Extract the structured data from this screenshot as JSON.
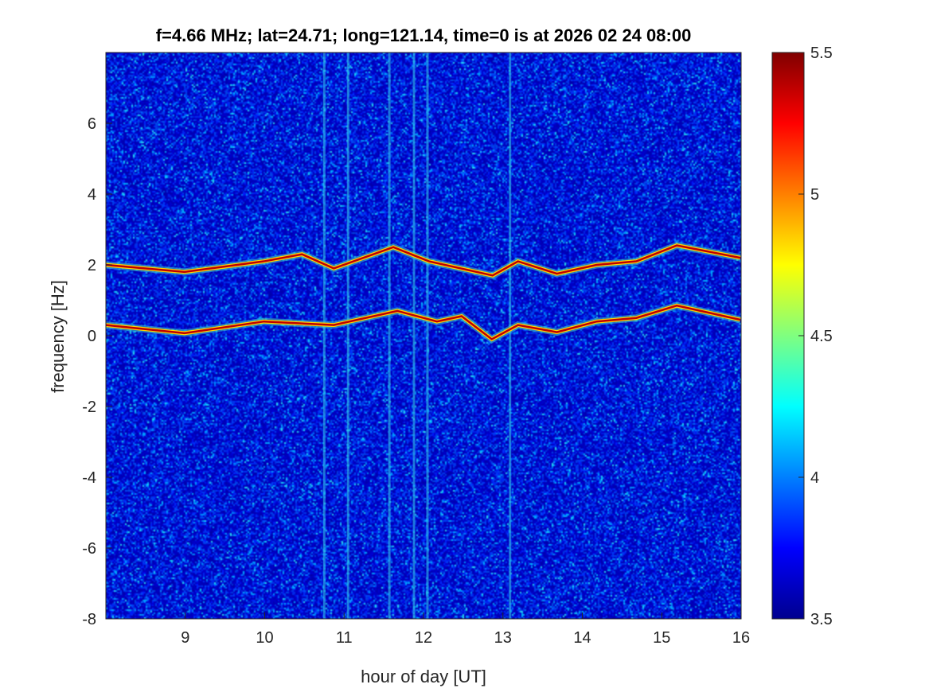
{
  "chart_data": {
    "type": "heatmap",
    "title": "f=4.66 MHz;  lat=24.71; long=121.14, time=0 is at 2026 02 24 08:00",
    "xlabel": "hour of day [UT]",
    "ylabel": "frequency [Hz]",
    "xlim": [
      8,
      16
    ],
    "ylim": [
      -8,
      8
    ],
    "xticks": [
      "9",
      "10",
      "11",
      "12",
      "13",
      "14",
      "15",
      "16"
    ],
    "yticks": [
      "6",
      "4",
      "2",
      "0",
      "-2",
      "-4",
      "-6",
      "-8"
    ],
    "colorbar": {
      "range": [
        3.5,
        5.5
      ],
      "ticks": [
        "5.5",
        "5",
        "4.5",
        "4",
        "3.5"
      ],
      "colormap": "jet"
    },
    "background_level": 3.75,
    "traces": [
      {
        "name": "upper-echo",
        "hours": [
          8.0,
          8.99,
          9.99,
          10.47,
          10.87,
          11.62,
          12.07,
          12.87,
          13.19,
          13.68,
          14.18,
          14.68,
          15.19,
          15.99
        ],
        "freq": [
          2.0,
          1.8,
          2.1,
          2.3,
          1.9,
          2.5,
          2.1,
          1.7,
          2.1,
          1.75,
          2.0,
          2.1,
          2.55,
          2.2
        ]
      },
      {
        "name": "lower-echo",
        "hours": [
          8.0,
          8.99,
          9.99,
          10.87,
          11.67,
          12.17,
          12.48,
          12.86,
          13.19,
          13.68,
          14.18,
          14.68,
          15.19,
          15.99
        ],
        "freq": [
          0.3,
          0.07,
          0.4,
          0.3,
          0.7,
          0.4,
          0.55,
          -0.1,
          0.3,
          0.1,
          0.4,
          0.5,
          0.85,
          0.45
        ]
      }
    ],
    "interference_lines_hours": [
      10.75,
      11.05,
      11.57,
      11.88,
      12.05,
      13.09
    ]
  }
}
